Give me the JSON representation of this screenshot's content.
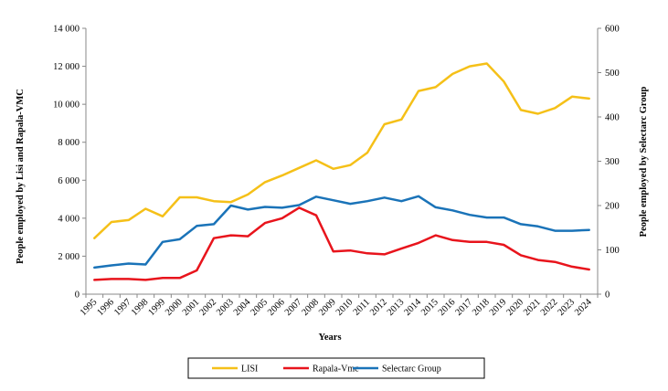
{
  "chart_data": {
    "type": "line",
    "title": "",
    "xlabel": "Years",
    "ylabel_left": "People employed by Lisi and Rapala-VMC",
    "ylabel_right": "People employed by Selectarc Group",
    "ylim_left": [
      0,
      14000
    ],
    "ylim_right": [
      0,
      600
    ],
    "yticks_left": [
      "0",
      "2 000",
      "4 000",
      "6 000",
      "8 000",
      "10 000",
      "12 000",
      "14 000"
    ],
    "yticks_right": [
      "0",
      "100",
      "200",
      "300",
      "400",
      "500",
      "600"
    ],
    "grid": false,
    "legend_position": "bottom",
    "x": [
      "1995",
      "1996",
      "1997",
      "1998",
      "1999",
      "2000",
      "2001",
      "2002",
      "2003",
      "2004",
      "2005",
      "2006",
      "2007",
      "2008",
      "2009",
      "2010",
      "2011",
      "2012",
      "2013",
      "2014",
      "2015",
      "2016",
      "2017",
      "2018",
      "2019",
      "2020",
      "2021",
      "2022",
      "2023",
      "2024"
    ],
    "series": [
      {
        "name": "LISI",
        "axis": "left",
        "color": "#f5c018",
        "values": [
          2950,
          3800,
          3900,
          4500,
          4100,
          5100,
          5100,
          4900,
          4850,
          5250,
          5900,
          6250,
          6650,
          7050,
          6600,
          6800,
          7450,
          8950,
          9200,
          10700,
          10900,
          11600,
          12000,
          12150,
          11200,
          9700,
          9500,
          9800,
          10400,
          10300
        ]
      },
      {
        "name": "Rapala-Vmc",
        "axis": "left",
        "color": "#e8141c",
        "values": [
          750,
          800,
          800,
          750,
          850,
          850,
          1250,
          2950,
          3100,
          3050,
          3750,
          4000,
          4550,
          4150,
          2250,
          2300,
          2150,
          2100,
          2400,
          2700,
          3100,
          2850,
          2750,
          2750,
          2600,
          2050,
          1800,
          1700,
          1450,
          1300
        ]
      },
      {
        "name": "Selectarc Group",
        "axis": "right",
        "color": "#1a73b8",
        "values": [
          60,
          65,
          69,
          67,
          118,
          124,
          154,
          158,
          200,
          191,
          197,
          195,
          201,
          220,
          212,
          204,
          210,
          218,
          210,
          221,
          196,
          189,
          179,
          173,
          173,
          158,
          153,
          143,
          143,
          145
        ]
      }
    ]
  }
}
